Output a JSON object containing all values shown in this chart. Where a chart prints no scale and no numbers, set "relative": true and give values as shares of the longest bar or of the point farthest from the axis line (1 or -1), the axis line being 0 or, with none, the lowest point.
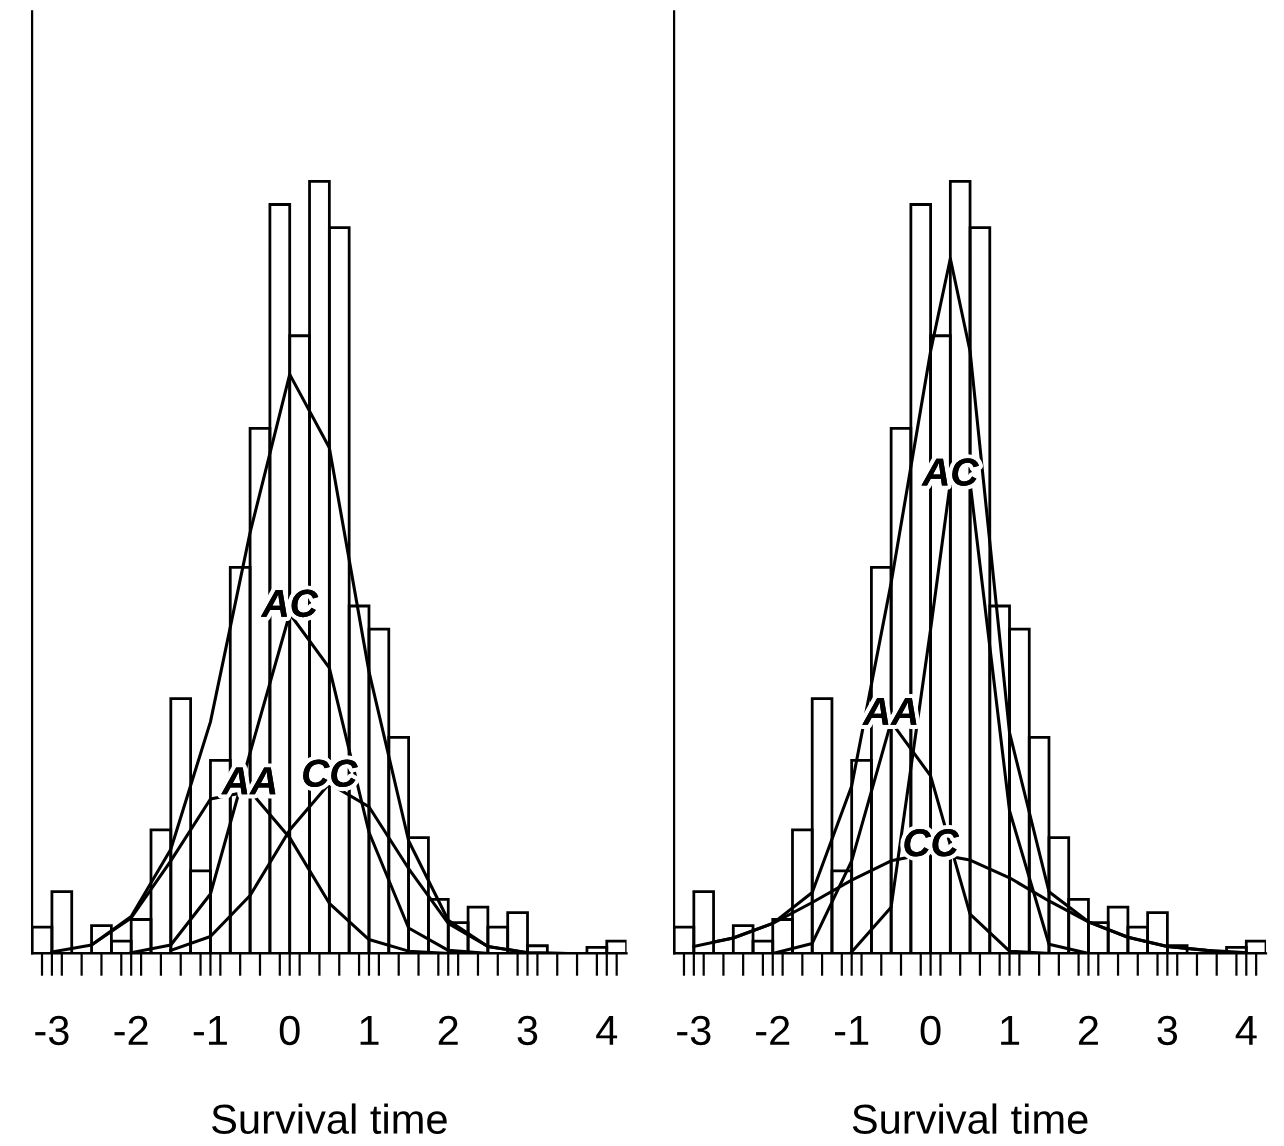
{
  "chart_data": [
    {
      "type": "histogram",
      "relative": true,
      "xlabel": "Survival time",
      "bins": [
        -3.25,
        -3.0,
        -2.75,
        -2.5,
        -2.25,
        -2.0,
        -1.75,
        -1.5,
        -1.25,
        -1.0,
        -0.75,
        -0.5,
        -0.25,
        0.0,
        0.25,
        0.5,
        0.75,
        1.0,
        1.25,
        1.5,
        1.75,
        2.0,
        2.25,
        2.5,
        2.75,
        3.0,
        3.25,
        3.5,
        3.75,
        4.0,
        4.25
      ],
      "values": [
        0.034,
        0.08,
        0,
        0.036,
        0.016,
        0.044,
        0.16,
        0.33,
        0.107,
        0.25,
        0.5,
        0.68,
        0.97,
        0.8,
        1.0,
        0.94,
        0.45,
        0.42,
        0.28,
        0.15,
        0.07,
        0.04,
        0.06,
        0.034,
        0.053,
        0.01,
        0,
        0,
        0.008,
        0.016
      ],
      "color": "#000000",
      "series": [
        {
          "type": "line",
          "color": "#000000",
          "x": [
            -3,
            -2.5,
            -2,
            -1.5,
            -1,
            -0.5,
            0,
            0.5,
            1,
            1.5,
            2,
            2.5,
            3,
            3.5,
            4
          ],
          "values": [
            0.002,
            0.011,
            0.048,
            0.135,
            0.3,
            0.545,
            0.75,
            0.655,
            0.365,
            0.146,
            0.043,
            0.009,
            0.001,
            0,
            0
          ]
        },
        {
          "type": "line",
          "name": "AA",
          "color": "#000000",
          "x": [
            -2.5,
            -2,
            -1.5,
            -1,
            -0.5,
            0,
            0.5,
            1,
            1.5,
            2
          ],
          "values": [
            0.011,
            0.046,
            0.12,
            0.2,
            0.21,
            0.15,
            0.065,
            0.018,
            0.003,
            0
          ]
        },
        {
          "type": "line",
          "name": "AC",
          "color": "#000000",
          "x": [
            -2,
            -1.5,
            -1,
            -0.5,
            0,
            0.5,
            1,
            1.5,
            2,
            2.5
          ],
          "values": [
            0.001,
            0.011,
            0.077,
            0.26,
            0.44,
            0.37,
            0.157,
            0.033,
            0.004,
            0
          ]
        },
        {
          "type": "line",
          "name": "CC",
          "color": "#000000",
          "x": [
            -1.5,
            -1,
            -0.5,
            0,
            0.5,
            1,
            1.5,
            2,
            2.5,
            3,
            3.5
          ],
          "values": [
            0.004,
            0.022,
            0.075,
            0.16,
            0.22,
            0.19,
            0.11,
            0.039,
            0.009,
            0.001,
            0
          ]
        }
      ],
      "xlim": [
        -3.25,
        4.25
      ],
      "xticks": [
        -3,
        -2,
        -1,
        0,
        1,
        2,
        3,
        4,
        {
          "value": -3.125,
          "label": null
        },
        {
          "value": -2.875,
          "label": null
        },
        {
          "value": -2.625,
          "label": null
        },
        {
          "value": -2.375,
          "label": null
        },
        {
          "value": -2.125,
          "label": null
        },
        {
          "value": -1.875,
          "label": null
        },
        {
          "value": -1.625,
          "label": null
        },
        {
          "value": -1.375,
          "label": null
        },
        {
          "value": -1.125,
          "label": null
        },
        {
          "value": -0.875,
          "label": null
        },
        {
          "value": -0.625,
          "label": null
        },
        {
          "value": -0.375,
          "label": null
        },
        {
          "value": -0.125,
          "label": null
        },
        {
          "value": 0.125,
          "label": null
        },
        {
          "value": 0.375,
          "label": null
        },
        {
          "value": 0.625,
          "label": null
        },
        {
          "value": 0.875,
          "label": null
        },
        {
          "value": 1.125,
          "label": null
        },
        {
          "value": 1.375,
          "label": null
        },
        {
          "value": 1.625,
          "label": null
        },
        {
          "value": 1.875,
          "label": null
        },
        {
          "value": 2.125,
          "label": null
        },
        {
          "value": 2.375,
          "label": null
        },
        {
          "value": 2.625,
          "label": null
        },
        {
          "value": 2.875,
          "label": null
        },
        {
          "value": 3.125,
          "label": null
        },
        {
          "value": 3.375,
          "label": null
        },
        {
          "value": 3.625,
          "label": null
        },
        {
          "value": 3.875,
          "label": null
        },
        {
          "value": 4.125,
          "label": null
        }
      ],
      "grid": false,
      "legend": false
    },
    {
      "type": "histogram",
      "relative": true,
      "xlabel": "Survival time",
      "bins": [
        -3.25,
        -3.0,
        -2.75,
        -2.5,
        -2.25,
        -2.0,
        -1.75,
        -1.5,
        -1.25,
        -1.0,
        -0.75,
        -0.5,
        -0.25,
        0.0,
        0.25,
        0.5,
        0.75,
        1.0,
        1.25,
        1.5,
        1.75,
        2.0,
        2.25,
        2.5,
        2.75,
        3.0,
        3.25,
        3.5,
        3.75,
        4.0,
        4.25
      ],
      "values": [
        0.034,
        0.08,
        0,
        0.036,
        0.016,
        0.044,
        0.16,
        0.33,
        0.107,
        0.25,
        0.5,
        0.68,
        0.97,
        0.8,
        1.0,
        0.94,
        0.45,
        0.42,
        0.28,
        0.15,
        0.07,
        0.04,
        0.06,
        0.034,
        0.053,
        0.01,
        0,
        0,
        0.008,
        0.016
      ],
      "color": "#000000",
      "series": [
        {
          "type": "line",
          "color": "#000000",
          "x": [
            -3,
            -2.5,
            -2,
            -1.5,
            -1,
            -0.5,
            0,
            0.25,
            0.5,
            1,
            1.5,
            2,
            2.5,
            3,
            3.5,
            4
          ],
          "values": [
            0.009,
            0.02,
            0.039,
            0.079,
            0.217,
            0.48,
            0.78,
            0.9,
            0.78,
            0.286,
            0.08,
            0.041,
            0.021,
            0.009,
            0.004,
            0.001
          ]
        },
        {
          "type": "line",
          "name": "AA",
          "color": "#000000",
          "x": [
            -2,
            -1.5,
            -1,
            -0.5,
            0,
            0.5,
            1,
            1.5
          ],
          "values": [
            0,
            0.013,
            0.12,
            0.3,
            0.23,
            0.051,
            0.003,
            0
          ]
        },
        {
          "type": "line",
          "name": "AC",
          "color": "#000000",
          "x": [
            -1,
            -0.5,
            0,
            0.25,
            0.5,
            1,
            1.5,
            2
          ],
          "values": [
            0.002,
            0.06,
            0.42,
            0.61,
            0.61,
            0.185,
            0.012,
            0
          ]
        },
        {
          "type": "line",
          "name": "CC",
          "color": "#000000",
          "x": [
            -2.75,
            -2.5,
            -2,
            -1.5,
            -1,
            -0.5,
            0,
            0.5,
            1,
            1.5,
            2,
            2.5,
            3,
            3.5
          ],
          "values": [
            0.015,
            0.02,
            0.039,
            0.066,
            0.095,
            0.12,
            0.13,
            0.121,
            0.098,
            0.068,
            0.041,
            0.021,
            0.009,
            0.004
          ]
        }
      ],
      "xlim": [
        -3.25,
        4.25
      ],
      "xticks": [
        -3,
        -2,
        -1,
        0,
        1,
        2,
        3,
        4,
        {
          "value": -3.125,
          "label": null
        },
        {
          "value": -2.875,
          "label": null
        },
        {
          "value": -2.625,
          "label": null
        },
        {
          "value": -2.375,
          "label": null
        },
        {
          "value": -2.125,
          "label": null
        },
        {
          "value": -1.875,
          "label": null
        },
        {
          "value": -1.625,
          "label": null
        },
        {
          "value": -1.375,
          "label": null
        },
        {
          "value": -1.125,
          "label": null
        },
        {
          "value": -0.875,
          "label": null
        },
        {
          "value": -0.625,
          "label": null
        },
        {
          "value": -0.375,
          "label": null
        },
        {
          "value": -0.125,
          "label": null
        },
        {
          "value": 0.125,
          "label": null
        },
        {
          "value": 0.375,
          "label": null
        },
        {
          "value": 0.625,
          "label": null
        },
        {
          "value": 0.875,
          "label": null
        },
        {
          "value": 1.125,
          "label": null
        },
        {
          "value": 1.375,
          "label": null
        },
        {
          "value": 1.625,
          "label": null
        },
        {
          "value": 1.875,
          "label": null
        },
        {
          "value": 2.125,
          "label": null
        },
        {
          "value": 2.375,
          "label": null
        },
        {
          "value": 2.625,
          "label": null
        },
        {
          "value": 2.875,
          "label": null
        },
        {
          "value": 3.125,
          "label": null
        },
        {
          "value": 3.375,
          "label": null
        },
        {
          "value": 3.625,
          "label": null
        },
        {
          "value": 3.875,
          "label": null
        },
        {
          "value": 4.125,
          "label": null
        }
      ],
      "grid": false,
      "legend": false
    }
  ]
}
